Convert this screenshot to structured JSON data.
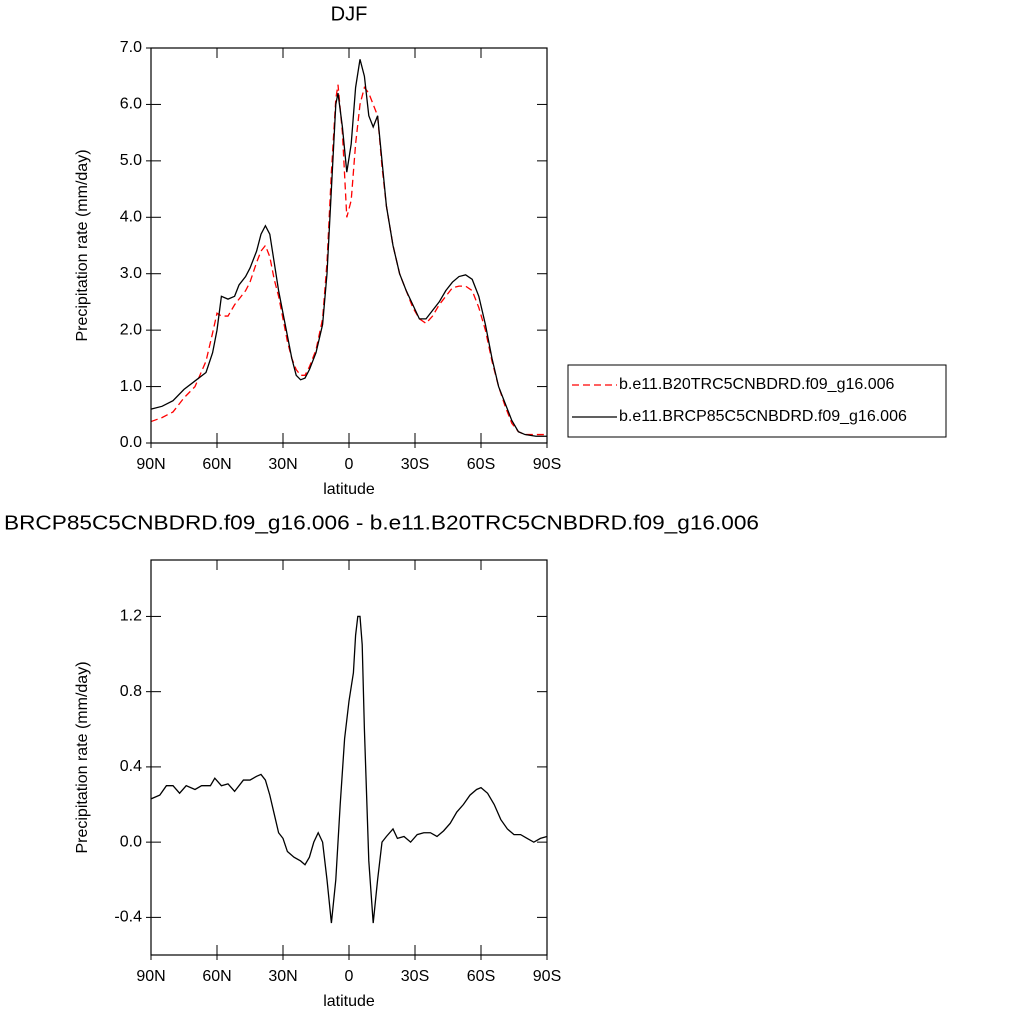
{
  "chart_data": [
    {
      "type": "line",
      "title": "DJF",
      "xlabel": "latitude",
      "ylabel": "Precipitation rate (mm/day)",
      "x": [
        90,
        85,
        80,
        75,
        70,
        65,
        62,
        60,
        58,
        55,
        52,
        50,
        47,
        45,
        42,
        40,
        38,
        36,
        34,
        32,
        30,
        28,
        26,
        24,
        22,
        20,
        18,
        15,
        12,
        10,
        8,
        6,
        5,
        3,
        1,
        -1,
        -3,
        -5,
        -7,
        -9,
        -11,
        -13,
        -15,
        -17,
        -20,
        -23,
        -26,
        -29,
        -32,
        -35,
        -38,
        -41,
        -44,
        -47,
        -50,
        -53,
        -56,
        -59,
        -62,
        -65,
        -68,
        -71,
        -74,
        -77,
        -80,
        -85,
        -90
      ],
      "series": [
        {
          "name": "b.e11.B20TRC5CNBDRD.f09_g16.006",
          "color": "#ff0000",
          "style": "dashed",
          "values": [
            0.38,
            0.45,
            0.55,
            0.8,
            1.0,
            1.45,
            1.95,
            2.3,
            2.25,
            2.25,
            2.45,
            2.55,
            2.7,
            2.85,
            3.2,
            3.4,
            3.5,
            3.3,
            2.9,
            2.6,
            2.2,
            1.8,
            1.5,
            1.3,
            1.2,
            1.2,
            1.35,
            1.65,
            2.2,
            3.2,
            4.8,
            6.1,
            6.35,
            5.5,
            4.0,
            4.3,
            5.3,
            6.0,
            6.3,
            6.2,
            6.0,
            5.8,
            4.9,
            4.2,
            3.5,
            3.0,
            2.7,
            2.4,
            2.2,
            2.12,
            2.25,
            2.45,
            2.6,
            2.75,
            2.78,
            2.78,
            2.7,
            2.4,
            2.0,
            1.45,
            1.0,
            0.65,
            0.35,
            0.2,
            0.15,
            0.15,
            0.15
          ]
        },
        {
          "name": "b.e11.BRCP85C5CNBDRD.f09_g16.006",
          "color": "#000000",
          "style": "solid",
          "values": [
            0.6,
            0.65,
            0.75,
            0.95,
            1.1,
            1.25,
            1.6,
            2.0,
            2.6,
            2.55,
            2.6,
            2.8,
            2.95,
            3.1,
            3.4,
            3.7,
            3.85,
            3.7,
            3.2,
            2.7,
            2.3,
            1.9,
            1.5,
            1.2,
            1.12,
            1.15,
            1.3,
            1.6,
            2.1,
            3.0,
            4.5,
            6.0,
            6.2,
            5.6,
            4.8,
            5.3,
            6.3,
            6.8,
            6.5,
            5.8,
            5.6,
            5.8,
            5.0,
            4.2,
            3.5,
            3.0,
            2.7,
            2.45,
            2.2,
            2.2,
            2.35,
            2.5,
            2.7,
            2.85,
            2.95,
            2.98,
            2.9,
            2.6,
            2.1,
            1.5,
            1.0,
            0.7,
            0.4,
            0.2,
            0.15,
            0.12,
            0.12
          ]
        }
      ],
      "xlim": [
        90,
        -90
      ],
      "xticks": [
        {
          "value": 90,
          "label": "90N"
        },
        {
          "value": 60,
          "label": "60N"
        },
        {
          "value": 30,
          "label": "30N"
        },
        0,
        {
          "value": -30,
          "label": "30S"
        },
        {
          "value": -60,
          "label": "60S"
        },
        {
          "value": -90,
          "label": "90S"
        }
      ],
      "ylim": [
        0,
        7
      ],
      "yticks": [
        {
          "value": 0,
          "label": "0.0"
        },
        {
          "value": 1,
          "label": "1.0"
        },
        {
          "value": 2,
          "label": "2.0"
        },
        {
          "value": 3,
          "label": "3.0"
        },
        {
          "value": 4,
          "label": "4.0"
        },
        {
          "value": 5,
          "label": "5.0"
        },
        {
          "value": 6,
          "label": "6.0"
        },
        {
          "value": 7,
          "label": "7.0"
        }
      ],
      "legend": "right",
      "grid": false
    },
    {
      "type": "line",
      "title": "BRCP85C5CNBDRD.f09_g16.006 - b.e11.B20TRC5CNBDRD.f09_g16.006",
      "xlabel": "latitude",
      "ylabel": "Precipitation rate (mm/day)",
      "x": [
        90,
        86,
        83,
        80,
        77,
        74,
        70,
        67,
        63,
        61,
        58,
        55,
        52,
        48,
        45,
        42,
        40,
        38,
        36,
        34,
        32,
        30,
        28,
        25,
        22,
        20,
        18,
        16,
        14,
        12,
        10,
        8,
        6,
        4,
        2,
        0,
        -2,
        -3,
        -4,
        -5,
        -6,
        -7,
        -9,
        -11,
        -13,
        -15,
        -17,
        -20,
        -22,
        -25,
        -28,
        -31,
        -34,
        -37,
        -40,
        -43,
        -46,
        -49,
        -52,
        -55,
        -58,
        -60,
        -63,
        -66,
        -69,
        -72,
        -75,
        -78,
        -81,
        -84,
        -87,
        -90
      ],
      "series": [
        {
          "color": "#000000",
          "style": "solid",
          "values": [
            0.23,
            0.25,
            0.3,
            0.3,
            0.26,
            0.3,
            0.28,
            0.3,
            0.3,
            0.34,
            0.3,
            0.31,
            0.27,
            0.33,
            0.33,
            0.35,
            0.36,
            0.33,
            0.25,
            0.15,
            0.05,
            0.02,
            -0.05,
            -0.08,
            -0.1,
            -0.12,
            -0.08,
            0.0,
            0.05,
            0.0,
            -0.2,
            -0.43,
            -0.2,
            0.2,
            0.55,
            0.75,
            0.9,
            1.1,
            1.2,
            1.2,
            1.05,
            0.6,
            -0.1,
            -0.43,
            -0.2,
            0.0,
            0.03,
            0.07,
            0.02,
            0.03,
            0.0,
            0.04,
            0.05,
            0.05,
            0.03,
            0.06,
            0.1,
            0.16,
            0.2,
            0.25,
            0.28,
            0.29,
            0.26,
            0.2,
            0.12,
            0.07,
            0.04,
            0.04,
            0.02,
            0.0,
            0.02,
            0.03
          ]
        }
      ],
      "xlim": [
        90,
        -90
      ],
      "xticks": [
        {
          "value": 90,
          "label": "90N"
        },
        {
          "value": 60,
          "label": "60N"
        },
        {
          "value": 30,
          "label": "30N"
        },
        0,
        {
          "value": -30,
          "label": "30S"
        },
        {
          "value": -60,
          "label": "60S"
        },
        {
          "value": -90,
          "label": "90S"
        }
      ],
      "ylim": [
        -0.6,
        1.5
      ],
      "yticks": [
        -0.4,
        {
          "value": 0,
          "label": "0.0"
        },
        0.4,
        0.8,
        1.2
      ],
      "grid": false
    }
  ]
}
